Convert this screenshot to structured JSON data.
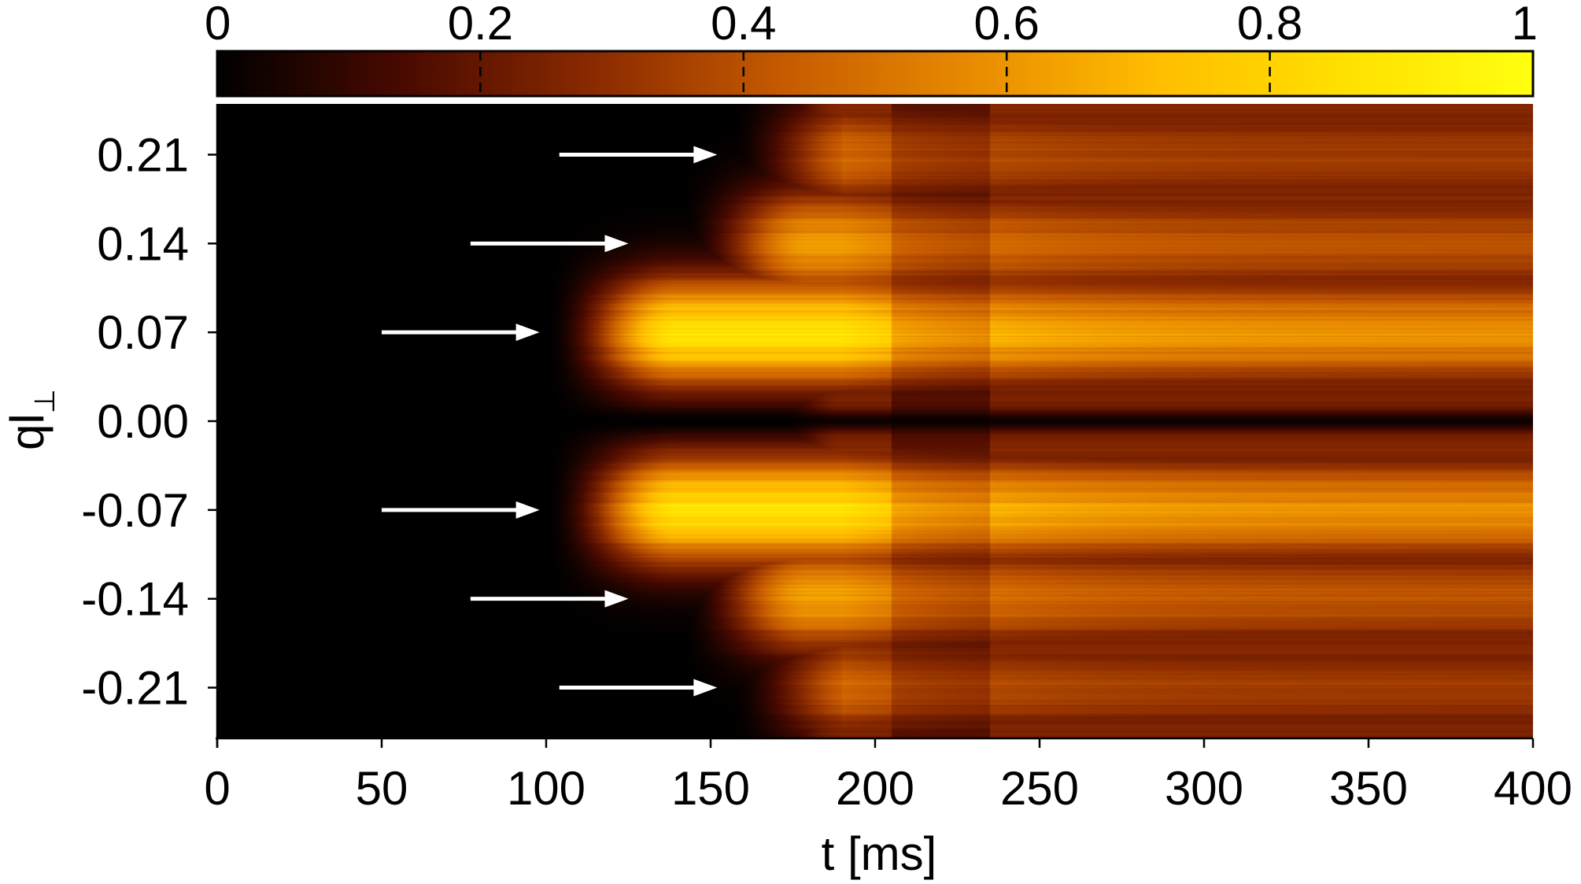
{
  "chart_data": {
    "type": "heatmap",
    "title": "",
    "xlabel": "t [ms]",
    "ylabel_main": "ql",
    "ylabel_sub": "⊥",
    "xlim": [
      0,
      400
    ],
    "ylim": [
      -0.25,
      0.25
    ],
    "x_ticks": [
      0,
      50,
      100,
      150,
      200,
      250,
      300,
      350,
      400
    ],
    "x_tick_labels": [
      "0",
      "50",
      "100",
      "150",
      "200",
      "250",
      "300",
      "350",
      "400"
    ],
    "y_ticks": [
      0.21,
      0.14,
      0.07,
      0.0,
      -0.07,
      -0.14,
      -0.21
    ],
    "y_tick_labels": [
      "0.21",
      "0.14",
      "0.07",
      "0.00",
      "-0.07",
      "-0.14",
      "-0.21"
    ],
    "colorbar": {
      "range": [
        0,
        1
      ],
      "ticks": [
        0,
        0.2,
        0.4,
        0.6,
        0.8,
        1
      ],
      "tick_labels": [
        "0",
        "0.2",
        "0.4",
        "0.6",
        "0.8",
        "1"
      ],
      "colormap": [
        "#000000",
        "#4a0a00",
        "#8a2a00",
        "#c55a00",
        "#e88a00",
        "#ffbd00",
        "#ffe000",
        "#ffff10"
      ]
    },
    "grid": false,
    "bands": [
      {
        "q": 0.21,
        "onset_t": 155,
        "peak_t": 190,
        "peak": 0.48,
        "late": 0.34
      },
      {
        "q": 0.14,
        "onset_t": 140,
        "peak_t": 190,
        "peak": 0.62,
        "late": 0.4
      },
      {
        "q": 0.07,
        "onset_t": 100,
        "peak_t": 190,
        "peak": 0.86,
        "late": 0.58
      },
      {
        "q": -0.07,
        "onset_t": 100,
        "peak_t": 190,
        "peak": 0.86,
        "late": 0.58
      },
      {
        "q": -0.14,
        "onset_t": 140,
        "peak_t": 190,
        "peak": 0.62,
        "late": 0.4
      },
      {
        "q": -0.21,
        "onset_t": 155,
        "peak_t": 190,
        "peak": 0.48,
        "late": 0.34
      }
    ],
    "annotations": [
      {
        "type": "arrow",
        "y": 0.21,
        "x_start": 104,
        "x_end": 152
      },
      {
        "type": "arrow",
        "y": 0.14,
        "x_start": 77,
        "x_end": 125
      },
      {
        "type": "arrow",
        "y": 0.07,
        "x_start": 50,
        "x_end": 98
      },
      {
        "type": "arrow",
        "y": -0.07,
        "x_start": 50,
        "x_end": 98
      },
      {
        "type": "arrow",
        "y": -0.14,
        "x_start": 77,
        "x_end": 125
      },
      {
        "type": "arrow",
        "y": -0.21,
        "x_start": 104,
        "x_end": 152
      }
    ],
    "colors": {
      "arrow": "#ffffff",
      "axis": "#000000"
    }
  }
}
